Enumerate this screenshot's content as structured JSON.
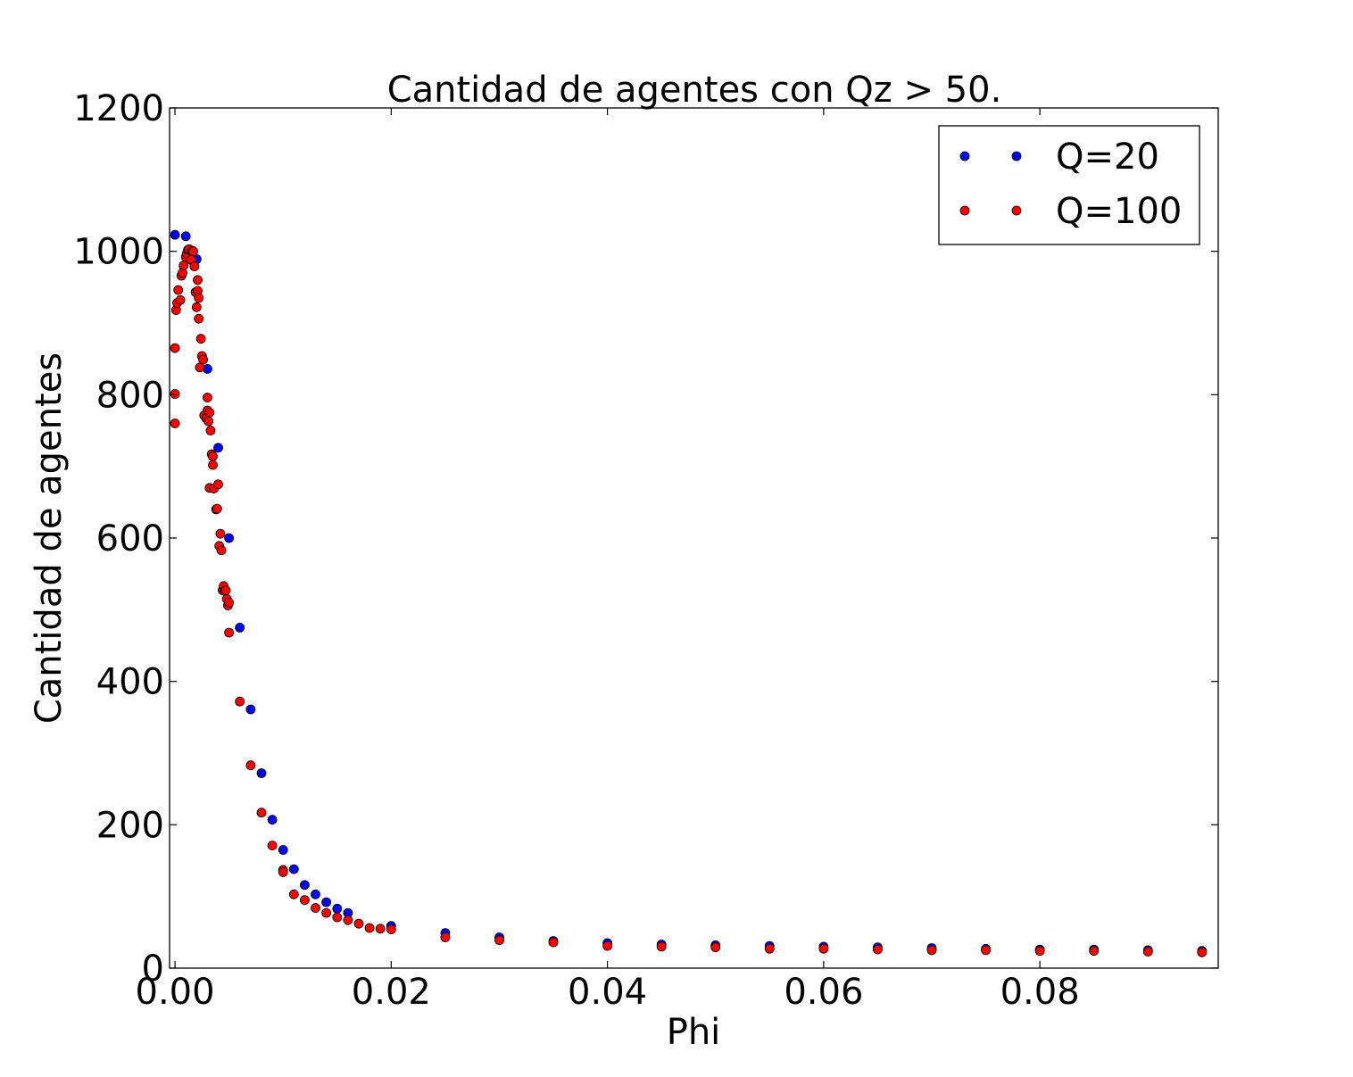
{
  "chart_data": {
    "type": "scatter",
    "title": "Cantidad de agentes con Qz > 50.",
    "xlabel": "Phi",
    "ylabel": "Cantidad de agentes",
    "xlim": [
      -0.0005,
      0.0965
    ],
    "ylim": [
      0,
      1200
    ],
    "xticks": [
      0.0,
      0.02,
      0.04,
      0.06,
      0.08
    ],
    "xtick_labels": [
      "0.00",
      "0.02",
      "0.04",
      "0.06",
      "0.08"
    ],
    "yticks": [
      0,
      200,
      400,
      600,
      800,
      1000,
      1200
    ],
    "ytick_labels": [
      "0",
      "200",
      "400",
      "600",
      "800",
      "1000",
      "1200"
    ],
    "grid": false,
    "legend": "top-right",
    "series": [
      {
        "name": "Q=20",
        "color": "#0000ff",
        "points": [
          [
            0.0,
            1023
          ],
          [
            0.001,
            1021
          ],
          [
            0.002,
            989
          ],
          [
            0.003,
            836
          ],
          [
            0.004,
            726
          ],
          [
            0.005,
            600
          ],
          [
            0.006,
            475
          ],
          [
            0.007,
            361
          ],
          [
            0.008,
            272
          ],
          [
            0.009,
            207
          ],
          [
            0.01,
            165
          ],
          [
            0.011,
            138
          ],
          [
            0.012,
            116
          ],
          [
            0.013,
            103
          ],
          [
            0.014,
            92
          ],
          [
            0.015,
            83
          ],
          [
            0.016,
            77
          ],
          [
            0.02,
            59
          ],
          [
            0.025,
            49
          ],
          [
            0.03,
            43
          ],
          [
            0.035,
            38
          ],
          [
            0.04,
            35
          ],
          [
            0.045,
            33
          ],
          [
            0.05,
            32
          ],
          [
            0.055,
            31
          ],
          [
            0.06,
            30
          ],
          [
            0.065,
            29
          ],
          [
            0.07,
            28
          ],
          [
            0.075,
            27
          ],
          [
            0.08,
            26
          ],
          [
            0.085,
            26
          ],
          [
            0.09,
            25
          ],
          [
            0.095,
            24
          ]
        ]
      },
      {
        "name": "Q=100",
        "color": "#ff0000",
        "points": [
          [
            0.0,
            760
          ],
          [
            0.0,
            801
          ],
          [
            0.0,
            865
          ],
          [
            0.0001,
            918
          ],
          [
            0.0002,
            928
          ],
          [
            0.0003,
            946
          ],
          [
            0.0005,
            932
          ],
          [
            0.0006,
            966
          ],
          [
            0.0007,
            970
          ],
          [
            0.0008,
            980
          ],
          [
            0.001,
            992
          ],
          [
            0.0011,
            997
          ],
          [
            0.0012,
            1002
          ],
          [
            0.0013,
            1003
          ],
          [
            0.0015,
            988
          ],
          [
            0.0016,
            1001
          ],
          [
            0.0017,
            1000
          ],
          [
            0.0018,
            979
          ],
          [
            0.0019,
            943
          ],
          [
            0.002,
            922
          ],
          [
            0.0021,
            960
          ],
          [
            0.0021,
            945
          ],
          [
            0.0022,
            935
          ],
          [
            0.0022,
            906
          ],
          [
            0.0023,
            838
          ],
          [
            0.0024,
            878
          ],
          [
            0.0025,
            854
          ],
          [
            0.0026,
            849
          ],
          [
            0.0027,
            771
          ],
          [
            0.0029,
            767
          ],
          [
            0.003,
            796
          ],
          [
            0.003,
            778
          ],
          [
            0.0031,
            763
          ],
          [
            0.0032,
            775
          ],
          [
            0.0032,
            670
          ],
          [
            0.0033,
            750
          ],
          [
            0.0034,
            717
          ],
          [
            0.0035,
            702
          ],
          [
            0.0035,
            714
          ],
          [
            0.0036,
            669
          ],
          [
            0.0038,
            640
          ],
          [
            0.0039,
            641
          ],
          [
            0.004,
            675
          ],
          [
            0.0041,
            589
          ],
          [
            0.0042,
            606
          ],
          [
            0.0043,
            583
          ],
          [
            0.0044,
            527
          ],
          [
            0.0045,
            533
          ],
          [
            0.0046,
            526
          ],
          [
            0.0047,
            527
          ],
          [
            0.0048,
            515
          ],
          [
            0.0049,
            506
          ],
          [
            0.005,
            510
          ],
          [
            0.005,
            468
          ],
          [
            0.006,
            372
          ],
          [
            0.007,
            283
          ],
          [
            0.008,
            217
          ],
          [
            0.009,
            171
          ],
          [
            0.01,
            137
          ],
          [
            0.01,
            134
          ],
          [
            0.011,
            103
          ],
          [
            0.012,
            95
          ],
          [
            0.013,
            84
          ],
          [
            0.014,
            77
          ],
          [
            0.015,
            71
          ],
          [
            0.016,
            67
          ],
          [
            0.017,
            62
          ],
          [
            0.018,
            56
          ],
          [
            0.019,
            55
          ],
          [
            0.02,
            54
          ],
          [
            0.025,
            43
          ],
          [
            0.03,
            39
          ],
          [
            0.035,
            36
          ],
          [
            0.04,
            31
          ],
          [
            0.045,
            30
          ],
          [
            0.05,
            29
          ],
          [
            0.055,
            27
          ],
          [
            0.06,
            27
          ],
          [
            0.065,
            26
          ],
          [
            0.07,
            25
          ],
          [
            0.075,
            25
          ],
          [
            0.08,
            24
          ],
          [
            0.085,
            24
          ],
          [
            0.09,
            23
          ],
          [
            0.095,
            22
          ]
        ]
      }
    ]
  }
}
